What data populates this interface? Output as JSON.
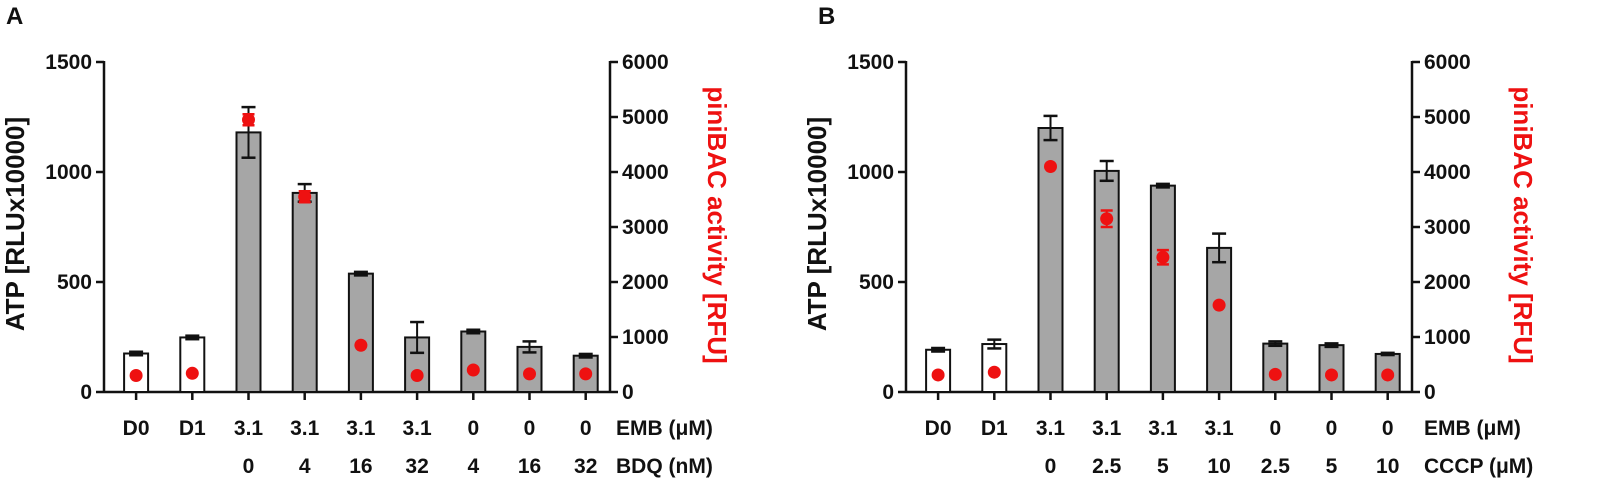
{
  "panel_labels": [
    "A",
    "B"
  ],
  "chart_data": [
    {
      "type": "bar",
      "panel": "A",
      "title": "",
      "ylabel": "ATP [RLUx10000]",
      "y2label": "piniBAC activity [RFU]",
      "ylim": [
        0,
        1500
      ],
      "yticks": [
        0,
        500,
        1000,
        1500
      ],
      "y2lim": [
        0,
        6000
      ],
      "y2ticks": [
        0,
        1000,
        2000,
        3000,
        4000,
        5000,
        6000
      ],
      "row1_label": "EMB (μM)",
      "row2_label": "BDQ (nM)",
      "categories": [
        "D0",
        "D1",
        "3.1",
        "3.1",
        "3.1",
        "3.1",
        "0",
        "0",
        "0"
      ],
      "row2": [
        "",
        "",
        "0",
        "4",
        "16",
        "32",
        "4",
        "16",
        "32"
      ],
      "bar_fill": [
        "white",
        "white",
        "gray",
        "gray",
        "gray",
        "gray",
        "gray",
        "gray",
        "gray"
      ],
      "series": [
        {
          "name": "ATP",
          "axis": "left",
          "values": [
            175,
            248,
            1180,
            905,
            538,
            248,
            275,
            205,
            165
          ],
          "errors": [
            8,
            8,
            115,
            40,
            8,
            70,
            8,
            25,
            8
          ]
        },
        {
          "name": "piniBAC",
          "axis": "right",
          "values": [
            300,
            340,
            4950,
            3550,
            850,
            300,
            400,
            330,
            330
          ],
          "errors": [
            0,
            0,
            100,
            100,
            0,
            0,
            0,
            0,
            0
          ]
        }
      ]
    },
    {
      "type": "bar",
      "panel": "B",
      "title": "",
      "ylabel": "ATP [RLUx10000]",
      "y2label": "piniBAC activity [RFU]",
      "ylim": [
        0,
        1500
      ],
      "yticks": [
        0,
        500,
        1000,
        1500
      ],
      "y2lim": [
        0,
        6000
      ],
      "y2ticks": [
        0,
        1000,
        2000,
        3000,
        4000,
        5000,
        6000
      ],
      "row1_label": "EMB (μM)",
      "row2_label": "CCCP (μM)",
      "categories": [
        "D0",
        "D1",
        "3.1",
        "3.1",
        "3.1",
        "3.1",
        "0",
        "0",
        "0"
      ],
      "row2": [
        "",
        "",
        "0",
        "2.5",
        "5",
        "10",
        "2.5",
        "5",
        "10"
      ],
      "bar_fill": [
        "white",
        "white",
        "gray",
        "gray",
        "gray",
        "gray",
        "gray",
        "gray",
        "gray"
      ],
      "series": [
        {
          "name": "ATP",
          "axis": "left",
          "values": [
            192,
            218,
            1200,
            1005,
            938,
            655,
            220,
            213,
            173
          ],
          "errors": [
            8,
            20,
            55,
            45,
            8,
            65,
            10,
            8,
            5
          ]
        },
        {
          "name": "piniBAC",
          "axis": "right",
          "values": [
            310,
            360,
            4100,
            3150,
            2450,
            1580,
            320,
            310,
            310
          ],
          "errors": [
            0,
            0,
            0,
            150,
            130,
            0,
            0,
            0,
            0
          ]
        }
      ]
    }
  ]
}
